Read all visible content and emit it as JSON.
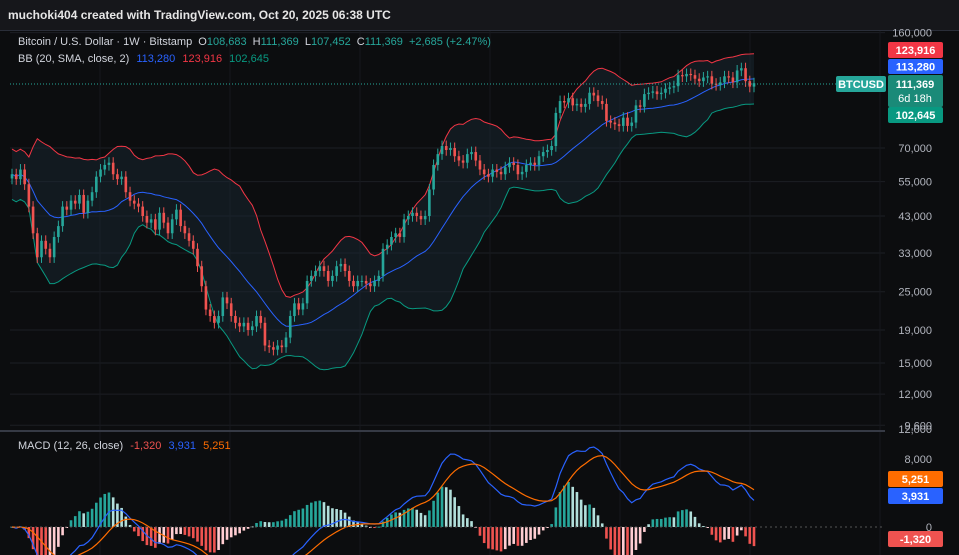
{
  "header": {
    "text": "muchoki404 created with TradingView.com, Oct 20, 2025 06:38 UTC"
  },
  "legend": {
    "title": "Bitcoin / U.S. Dollar · 1W · Bitstamp",
    "o_label": "O",
    "o_value": "108,683",
    "h_label": "H",
    "h_value": "111,369",
    "l_label": "L",
    "l_value": "107,452",
    "c_label": "C",
    "c_value": "111,369",
    "change": "+2,685 (+2.47%)",
    "bb_label": "BB (20, SMA, close, 2)",
    "bb_basis": "113,280",
    "bb_upper": "123,916",
    "bb_lower": "102,645",
    "macd_label": "MACD (12, 26, close)",
    "macd_hist": "-1,320",
    "macd_line": "3,931",
    "macd_signal": "5,251"
  },
  "price_badges": {
    "upper": "123,916",
    "basis": "113,280",
    "symbol": "BTCUSD",
    "price": "111,369",
    "countdown": "6d 18h",
    "lower": "102,645"
  },
  "macd_badges": {
    "signal": "5,251",
    "macd": "3,931",
    "hist": "-1,320"
  },
  "colors": {
    "up": "#26a69a",
    "down": "#ef5350",
    "bb_upper": "#f23645",
    "bb_basis": "#2962ff",
    "bb_lower": "#089981",
    "macd": "#2962ff",
    "signal": "#ff6d00",
    "hist_pos": "#b2dfdb",
    "hist_neg": "#ffcdd2"
  },
  "chart_data": {
    "type": "candlestick",
    "symbol": "BTCUSD",
    "timeframe": "1W",
    "price_axis": {
      "scale": "log",
      "ticks": [
        "160,000",
        "70,000",
        "55,000",
        "43,000",
        "33,000",
        "25,000",
        "19,000",
        "15,000",
        "12,000",
        "9,600"
      ]
    },
    "macd_axis": {
      "ticks": [
        "12,000",
        "8,000",
        "0"
      ]
    },
    "series": [
      {
        "name": "BTCUSD",
        "close": [
          58000,
          56000,
          60000,
          54000,
          46000,
          38000,
          32000,
          36000,
          34000,
          32000,
          37000,
          40000,
          46000,
          45000,
          48000,
          47000,
          50000,
          44000,
          48000,
          51000,
          57000,
          60000,
          62000,
          63000,
          58000,
          56000,
          57000,
          51000,
          48000,
          47000,
          46000,
          43000,
          41000,
          42000,
          39000,
          44000,
          41000,
          38000,
          42000,
          45000,
          40000,
          38000,
          36000,
          34000,
          30000,
          26000,
          22000,
          21000,
          20000,
          21000,
          24000,
          23000,
          21000,
          20000,
          19500,
          20000,
          19000,
          19500,
          21000,
          20000,
          17000,
          16800,
          16500,
          17000,
          16800,
          18000,
          21000,
          23000,
          22000,
          23000,
          27000,
          28000,
          29000,
          30000,
          29000,
          27000,
          28000,
          30000,
          30500,
          29000,
          27000,
          26000,
          27000,
          27000,
          26500,
          26000,
          27000,
          28000,
          34000,
          35000,
          37000,
          38000,
          37000,
          42000,
          43000,
          44000,
          43000,
          42000,
          43000,
          52000,
          62000,
          67000,
          71000,
          69000,
          70000,
          66000,
          64000,
          63000,
          67000,
          68000,
          64000,
          60000,
          58000,
          57000,
          60000,
          59000,
          58000,
          61000,
          63000,
          62000,
          58000,
          59000,
          62000,
          63000,
          62000,
          66000,
          68000,
          69000,
          71000,
          90000,
          98000,
          97000,
          100000,
          95000,
          96000,
          94000,
          96000,
          104000,
          102000,
          98000,
          96000,
          85000,
          84000,
          83000,
          82000,
          87000,
          82000,
          84000,
          95000,
          94000,
          103000,
          104000,
          105000,
          103000,
          104000,
          107000,
          108000,
          109000,
          118000,
          117000,
          119000,
          118000,
          115000,
          113000,
          116000,
          117000,
          111000,
          110000,
          112000,
          117000,
          116000,
          112000,
          122000,
          124000,
          113000,
          108683,
          111369
        ]
      }
    ]
  }
}
